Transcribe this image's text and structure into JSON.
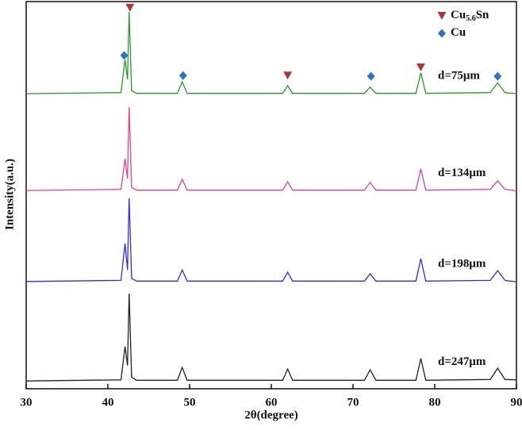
{
  "chart_data": {
    "type": "line",
    "x_label": "2θ(degree)",
    "y_label": "Intensity(a.u.)",
    "xlim": [
      30,
      90
    ],
    "xticks": [
      30,
      40,
      50,
      60,
      70,
      80,
      90
    ],
    "ylim": [
      0,
      100
    ],
    "x": [
      30,
      41.6,
      42.1,
      42.4,
      42.6,
      42.9,
      43.5,
      48.5,
      49.1,
      49.7,
      61.4,
      62.0,
      62.6,
      71.4,
      72.1,
      72.8,
      77.7,
      78.3,
      78.9,
      86.8,
      87.7,
      88.6,
      90
    ],
    "series": [
      {
        "name": "d=75μm",
        "color": "#2a9a2a",
        "values": [
          76.2,
          76.5,
          85,
          79.9,
          97.3,
          77,
          76.3,
          76.3,
          79.3,
          76.3,
          76.3,
          78.3,
          76.3,
          76.3,
          77.9,
          76.3,
          76.3,
          81.6,
          76.3,
          76.5,
          79,
          76.5,
          76.2
        ]
      },
      {
        "name": "d=134μm",
        "color": "#e0409a",
        "values": [
          51.2,
          51.5,
          59.4,
          54.3,
          72.7,
          52,
          51.3,
          51.3,
          54.1,
          51.3,
          51.3,
          53.5,
          51.3,
          51.3,
          53.3,
          51.3,
          51.3,
          56.8,
          51.3,
          51.5,
          53.7,
          51.5,
          51.1
        ]
      },
      {
        "name": "d=198μm",
        "color": "#2d2df0",
        "values": [
          27.7,
          28,
          37.5,
          30.7,
          49.2,
          28.5,
          27.8,
          27.8,
          30.7,
          27.8,
          27.8,
          30.1,
          27.8,
          27.8,
          29.7,
          27.8,
          27.8,
          33.6,
          27.8,
          28,
          30.5,
          28,
          27.6
        ]
      },
      {
        "name": "d=247μm",
        "color": "#222222",
        "values": [
          2,
          2.3,
          10.9,
          6,
          24.6,
          3,
          2.2,
          2.2,
          5.5,
          2.2,
          2.2,
          5.1,
          2.2,
          2.2,
          4.9,
          2.2,
          2.2,
          7.8,
          2.2,
          2.4,
          5.3,
          2.4,
          2.3
        ]
      }
    ],
    "phases": [
      {
        "label_parts": [
          "Cu",
          "5.6",
          "Sn"
        ],
        "marker": "triangle",
        "color": "#a8383a",
        "x": [
          42.7,
          62.0,
          78.3
        ],
        "y": [
          98.4,
          80.9,
          83
        ]
      },
      {
        "label_parts": [
          "Cu"
        ],
        "marker": "diamond",
        "color": "#2f6fc4",
        "x": [
          42.0,
          49.2,
          72.2,
          87.7
        ],
        "y": [
          86.1,
          80.9,
          80.7,
          80.7
        ]
      }
    ]
  }
}
